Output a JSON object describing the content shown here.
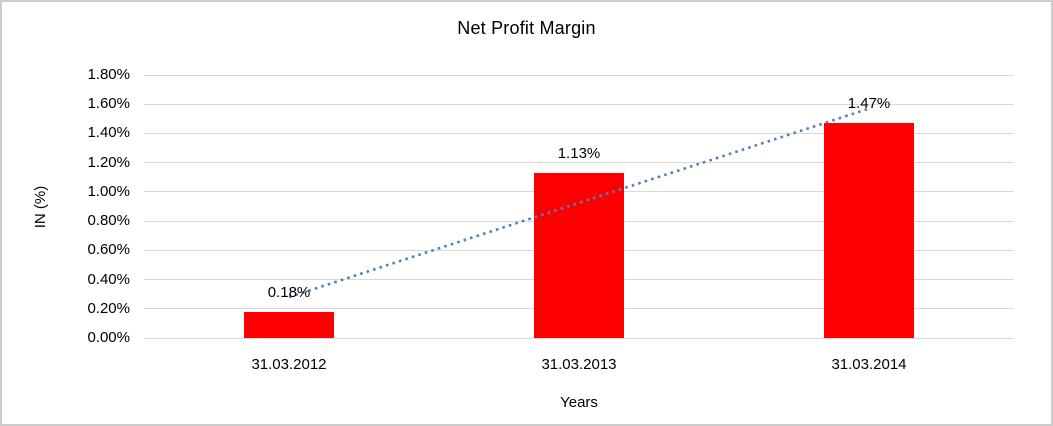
{
  "chart_data": {
    "type": "bar",
    "title": "Net Profit Margin",
    "categories": [
      "31.03.2012",
      "31.03.2013",
      "31.03.2014"
    ],
    "values": [
      0.18,
      1.13,
      1.47
    ],
    "data_labels": [
      "0.18%",
      "1.13%",
      "1.47%"
    ],
    "xlabel": "Years",
    "ylabel": "IN (%)",
    "ylim": [
      0,
      1.8
    ],
    "ytick_values": [
      0.0,
      0.2,
      0.4,
      0.6,
      0.8,
      1.0,
      1.2,
      1.4,
      1.6,
      1.8
    ],
    "ytick_labels": [
      "0.00%",
      "0.20%",
      "0.40%",
      "0.60%",
      "0.80%",
      "1.00%",
      "1.20%",
      "1.40%",
      "1.60%",
      "1.80%"
    ],
    "grid": true,
    "legend": "none",
    "colors": {
      "bar": "#ff0000",
      "gridline": "#d9d9d9",
      "trendline": "#4f81bd",
      "text": "#000000",
      "frame": "#cdcdcd"
    },
    "trendline": {
      "type": "linear",
      "style": "dotted",
      "fit_values": [
        0.28,
        1.57
      ]
    }
  }
}
